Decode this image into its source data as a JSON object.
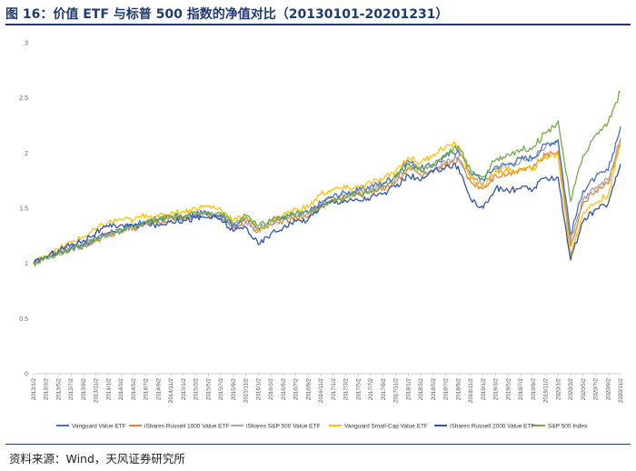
{
  "header": {
    "title": "图 16：价值 ETF 与标普 500 指数的净值对比（20130101-20201231）"
  },
  "footer": {
    "source": "资料来源：Wind，天风证券研究所"
  },
  "chart_data": {
    "type": "line",
    "title": "图 16：价值 ETF 与标普 500 指数的净值对比（20130101-20201231）",
    "xlabel": "",
    "ylabel": "",
    "ylim": [
      0,
      3
    ],
    "yticks": [
      "0",
      "0.5",
      "1",
      "1.5",
      "2",
      "2.5",
      "3"
    ],
    "grid": false,
    "legend_position": "bottom",
    "x_tick_labels": [
      "2013/1/2",
      "2013/3/2",
      "2013/5/2",
      "2013/7/2",
      "2013/9/2",
      "2013/11/2",
      "2014/1/2",
      "2014/3/2",
      "2014/5/2",
      "2014/7/2",
      "2014/9/2",
      "2014/11/2",
      "2015/1/2",
      "2015/3/2",
      "2015/5/2",
      "2015/7/2",
      "2015/9/2",
      "2015/11/2",
      "2016/1/2",
      "2016/3/2",
      "2016/5/2",
      "2016/7/2",
      "2016/9/2",
      "2016/11/2",
      "2017/1/2",
      "2017/3/2",
      "2017/5/2",
      "2017/7/2",
      "2017/9/2",
      "2017/11/2",
      "2018/1/2",
      "2018/3/2",
      "2018/5/2",
      "2018/7/2",
      "2018/9/2",
      "2018/11/2",
      "2019/1/2",
      "2019/3/2",
      "2019/5/2",
      "2019/7/2",
      "2019/9/2",
      "2019/11/2",
      "2020/1/2",
      "2020/3/2",
      "2020/5/2",
      "2020/7/2",
      "2020/9/2",
      "2020/11/2"
    ],
    "series": [
      {
        "name": "Vanguard Value ETF",
        "color": "#4472c4",
        "values": [
          1.0,
          1.06,
          1.1,
          1.14,
          1.17,
          1.23,
          1.28,
          1.31,
          1.34,
          1.38,
          1.4,
          1.43,
          1.42,
          1.45,
          1.46,
          1.44,
          1.35,
          1.41,
          1.32,
          1.38,
          1.42,
          1.45,
          1.46,
          1.55,
          1.61,
          1.64,
          1.66,
          1.7,
          1.73,
          1.8,
          1.93,
          1.86,
          1.89,
          1.97,
          2.03,
          1.82,
          1.76,
          1.88,
          1.9,
          1.95,
          1.96,
          2.08,
          2.12,
          1.26,
          1.66,
          1.78,
          1.84,
          2.24
        ]
      },
      {
        "name": "iShares Russell 1000 Value ETF",
        "color": "#ed7d31",
        "values": [
          1.0,
          1.05,
          1.09,
          1.13,
          1.16,
          1.21,
          1.26,
          1.29,
          1.32,
          1.36,
          1.38,
          1.41,
          1.4,
          1.43,
          1.44,
          1.42,
          1.33,
          1.38,
          1.29,
          1.35,
          1.39,
          1.42,
          1.43,
          1.52,
          1.57,
          1.6,
          1.62,
          1.65,
          1.68,
          1.74,
          1.87,
          1.8,
          1.82,
          1.89,
          1.95,
          1.74,
          1.68,
          1.8,
          1.81,
          1.86,
          1.87,
          1.98,
          2.02,
          1.16,
          1.55,
          1.66,
          1.72,
          2.11
        ]
      },
      {
        "name": "iShares S&P 500 Value ETF",
        "color": "#a5a5a5",
        "values": [
          1.0,
          1.05,
          1.1,
          1.14,
          1.17,
          1.22,
          1.27,
          1.3,
          1.33,
          1.37,
          1.39,
          1.42,
          1.41,
          1.43,
          1.44,
          1.42,
          1.32,
          1.38,
          1.29,
          1.36,
          1.4,
          1.43,
          1.45,
          1.54,
          1.6,
          1.62,
          1.64,
          1.67,
          1.7,
          1.77,
          1.9,
          1.83,
          1.84,
          1.91,
          1.97,
          1.77,
          1.72,
          1.85,
          1.87,
          1.93,
          1.95,
          2.06,
          2.1,
          1.2,
          1.57,
          1.69,
          1.75,
          2.14
        ]
      },
      {
        "name": "Vanguard Small-Cap Value ETF",
        "color": "#ffc000",
        "values": [
          1.0,
          1.07,
          1.13,
          1.19,
          1.24,
          1.31,
          1.37,
          1.4,
          1.39,
          1.44,
          1.42,
          1.46,
          1.47,
          1.5,
          1.52,
          1.49,
          1.39,
          1.43,
          1.3,
          1.38,
          1.44,
          1.49,
          1.51,
          1.63,
          1.67,
          1.68,
          1.69,
          1.73,
          1.76,
          1.84,
          1.96,
          1.91,
          1.99,
          2.06,
          2.07,
          1.78,
          1.69,
          1.84,
          1.83,
          1.85,
          1.86,
          1.97,
          1.98,
          1.08,
          1.46,
          1.55,
          1.62,
          2.08
        ]
      },
      {
        "name": "iShares Russell 2000 Value ETF",
        "color": "#2f55a4",
        "values": [
          1.0,
          1.06,
          1.12,
          1.17,
          1.21,
          1.28,
          1.33,
          1.35,
          1.33,
          1.37,
          1.34,
          1.39,
          1.39,
          1.41,
          1.42,
          1.4,
          1.29,
          1.33,
          1.17,
          1.27,
          1.33,
          1.38,
          1.4,
          1.52,
          1.56,
          1.57,
          1.57,
          1.6,
          1.63,
          1.69,
          1.8,
          1.75,
          1.83,
          1.88,
          1.88,
          1.58,
          1.5,
          1.68,
          1.66,
          1.68,
          1.67,
          1.78,
          1.78,
          1.03,
          1.38,
          1.49,
          1.54,
          1.9
        ]
      },
      {
        "name": "S&P 500 Index",
        "color": "#70ad47",
        "values": [
          1.0,
          1.05,
          1.09,
          1.13,
          1.16,
          1.21,
          1.26,
          1.29,
          1.32,
          1.37,
          1.39,
          1.43,
          1.42,
          1.45,
          1.47,
          1.46,
          1.36,
          1.43,
          1.34,
          1.39,
          1.42,
          1.45,
          1.46,
          1.51,
          1.57,
          1.6,
          1.63,
          1.66,
          1.69,
          1.78,
          1.91,
          1.85,
          1.9,
          1.99,
          2.06,
          1.84,
          1.78,
          1.94,
          1.99,
          2.03,
          2.06,
          2.18,
          2.29,
          1.56,
          1.98,
          2.16,
          2.28,
          2.56
        ]
      }
    ]
  }
}
